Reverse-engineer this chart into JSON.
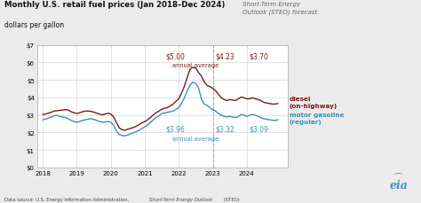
{
  "title": "Monthly U.S. retail fuel prices (Jan 2018–Dec 2024)",
  "subtitle": "dollars per gallon",
  "steo_label": "Short-Term Energy\nOutlook (STEO) forecast",
  "bg_color": "#ebebeb",
  "plot_bg_color": "#ffffff",
  "diesel_color": "#7b1a1a",
  "gasoline_color": "#3a8fbf",
  "forecast_line_x": 2023.0,
  "ylim": [
    0,
    7
  ],
  "yticks": [
    0,
    1,
    2,
    3,
    4,
    5,
    6,
    7
  ],
  "ytick_labels": [
    "$0",
    "$1",
    "$2",
    "$3",
    "$4",
    "$5",
    "$6",
    "$7"
  ],
  "xlim": [
    2017.83,
    2025.2
  ],
  "xticks": [
    2018,
    2019,
    2020,
    2021,
    2022,
    2023,
    2024
  ],
  "diesel_ann_y": 6.4,
  "diesel_ann": [
    {
      "x": 2021.9,
      "text": "$5.00"
    },
    {
      "x": 2023.35,
      "text": "$4.23"
    },
    {
      "x": 2024.35,
      "text": "$3.70"
    }
  ],
  "diesel_avg_x": 2022.5,
  "diesel_avg_y": 5.85,
  "gasoline_ann_y": 2.2,
  "gasoline_ann": [
    {
      "x": 2021.9,
      "text": "$3.96"
    },
    {
      "x": 2023.35,
      "text": "$3.32"
    },
    {
      "x": 2024.35,
      "text": "$3.09"
    }
  ],
  "gasoline_avg_x": 2022.5,
  "gasoline_avg_y": 1.65,
  "data_source_normal": "Data source: U.S. Energy Information Administration, ",
  "data_source_italic": "Short-Term Energy Outlook",
  "data_source_end": " (STEO)",
  "diesel_data": {
    "dates": [
      2018.0,
      2018.083,
      2018.167,
      2018.25,
      2018.333,
      2018.417,
      2018.5,
      2018.583,
      2018.667,
      2018.75,
      2018.833,
      2018.917,
      2019.0,
      2019.083,
      2019.167,
      2019.25,
      2019.333,
      2019.417,
      2019.5,
      2019.583,
      2019.667,
      2019.75,
      2019.833,
      2019.917,
      2020.0,
      2020.083,
      2020.167,
      2020.25,
      2020.333,
      2020.417,
      2020.5,
      2020.583,
      2020.667,
      2020.75,
      2020.833,
      2020.917,
      2021.0,
      2021.083,
      2021.167,
      2021.25,
      2021.333,
      2021.417,
      2021.5,
      2021.583,
      2021.667,
      2021.75,
      2021.833,
      2021.917,
      2022.0,
      2022.083,
      2022.167,
      2022.25,
      2022.333,
      2022.417,
      2022.5,
      2022.583,
      2022.667,
      2022.75,
      2022.833,
      2022.917,
      2023.0,
      2023.083,
      2023.167,
      2023.25,
      2023.333,
      2023.417,
      2023.5,
      2023.583,
      2023.667,
      2023.75,
      2023.833,
      2023.917,
      2024.0,
      2024.083,
      2024.167,
      2024.25,
      2024.333,
      2024.417,
      2024.5,
      2024.583,
      2024.667,
      2024.75,
      2024.833,
      2024.917
    ],
    "values": [
      3.02,
      3.05,
      3.1,
      3.15,
      3.22,
      3.24,
      3.26,
      3.28,
      3.3,
      3.28,
      3.18,
      3.12,
      3.08,
      3.12,
      3.18,
      3.22,
      3.22,
      3.2,
      3.16,
      3.1,
      3.05,
      3.0,
      3.05,
      3.1,
      3.05,
      2.88,
      2.55,
      2.25,
      2.15,
      2.12,
      2.18,
      2.23,
      2.28,
      2.35,
      2.45,
      2.55,
      2.62,
      2.72,
      2.85,
      3.0,
      3.12,
      3.22,
      3.32,
      3.38,
      3.42,
      3.52,
      3.62,
      3.78,
      3.92,
      4.25,
      4.65,
      5.15,
      5.62,
      5.72,
      5.68,
      5.42,
      5.22,
      4.88,
      4.68,
      4.62,
      4.52,
      4.38,
      4.18,
      3.98,
      3.88,
      3.82,
      3.88,
      3.85,
      3.82,
      3.92,
      4.02,
      3.98,
      3.92,
      3.92,
      3.98,
      3.92,
      3.88,
      3.82,
      3.72,
      3.68,
      3.65,
      3.62,
      3.62,
      3.65
    ]
  },
  "gasoline_data": {
    "dates": [
      2018.0,
      2018.083,
      2018.167,
      2018.25,
      2018.333,
      2018.417,
      2018.5,
      2018.583,
      2018.667,
      2018.75,
      2018.833,
      2018.917,
      2019.0,
      2019.083,
      2019.167,
      2019.25,
      2019.333,
      2019.417,
      2019.5,
      2019.583,
      2019.667,
      2019.75,
      2019.833,
      2019.917,
      2020.0,
      2020.083,
      2020.167,
      2020.25,
      2020.333,
      2020.417,
      2020.5,
      2020.583,
      2020.667,
      2020.75,
      2020.833,
      2020.917,
      2021.0,
      2021.083,
      2021.167,
      2021.25,
      2021.333,
      2021.417,
      2021.5,
      2021.583,
      2021.667,
      2021.75,
      2021.833,
      2021.917,
      2022.0,
      2022.083,
      2022.167,
      2022.25,
      2022.333,
      2022.417,
      2022.5,
      2022.583,
      2022.667,
      2022.75,
      2022.833,
      2022.917,
      2023.0,
      2023.083,
      2023.167,
      2023.25,
      2023.333,
      2023.417,
      2023.5,
      2023.583,
      2023.667,
      2023.75,
      2023.833,
      2023.917,
      2024.0,
      2024.083,
      2024.167,
      2024.25,
      2024.333,
      2024.417,
      2024.5,
      2024.583,
      2024.667,
      2024.75,
      2024.833,
      2024.917
    ],
    "values": [
      2.72,
      2.76,
      2.82,
      2.88,
      2.95,
      2.98,
      2.92,
      2.88,
      2.85,
      2.78,
      2.68,
      2.62,
      2.58,
      2.62,
      2.68,
      2.72,
      2.76,
      2.78,
      2.75,
      2.68,
      2.62,
      2.58,
      2.6,
      2.62,
      2.58,
      2.42,
      2.06,
      1.88,
      1.82,
      1.8,
      1.85,
      1.92,
      1.98,
      2.05,
      2.12,
      2.22,
      2.32,
      2.42,
      2.58,
      2.72,
      2.85,
      2.95,
      3.08,
      3.12,
      3.15,
      3.18,
      3.22,
      3.32,
      3.42,
      3.68,
      3.98,
      4.38,
      4.72,
      4.88,
      4.8,
      4.55,
      3.9,
      3.62,
      3.55,
      3.42,
      3.28,
      3.22,
      3.08,
      2.98,
      2.92,
      2.88,
      2.92,
      2.88,
      2.85,
      2.9,
      3.02,
      2.98,
      2.92,
      2.98,
      3.02,
      2.98,
      2.92,
      2.85,
      2.78,
      2.75,
      2.72,
      2.7,
      2.68,
      2.72
    ]
  }
}
